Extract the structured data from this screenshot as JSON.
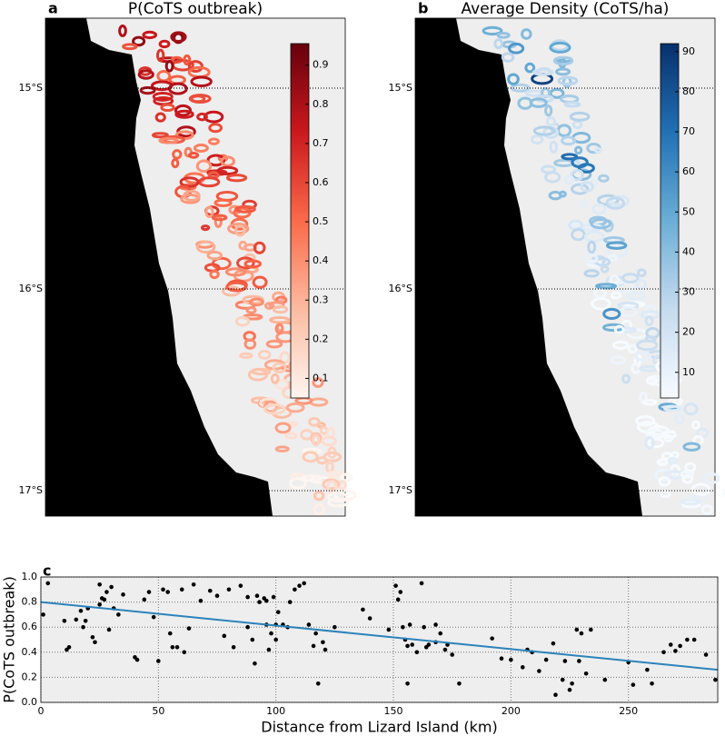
{
  "chart_data": [
    {
      "type": "map",
      "panel": "a",
      "title": "P(CoTS outbreak)",
      "lat_labels": [
        "15°S",
        "16°S",
        "17°S"
      ],
      "colormap": [
        "#fff5f0",
        "#fcbba1",
        "#fb6a4a",
        "#cb181d",
        "#67000d"
      ],
      "clim": [
        0.05,
        0.955
      ],
      "cticks": [
        0.1,
        0.2,
        0.3,
        0.4,
        0.5,
        0.6,
        0.7,
        0.8,
        0.9
      ]
    },
    {
      "type": "map",
      "panel": "b",
      "title": "Average Density (CoTS/ha)",
      "lat_labels": [
        "15°S",
        "16°S",
        "17°S"
      ],
      "colormap": [
        "#f7fbff",
        "#c6dbef",
        "#6baed6",
        "#2171b5",
        "#08306b"
      ],
      "clim": [
        3.6,
        92
      ],
      "cticks": [
        10,
        20,
        30,
        40,
        50,
        60,
        70,
        80,
        90
      ]
    },
    {
      "type": "scatter",
      "panel": "c",
      "xlabel": "Distance from Lizard Island (km)",
      "ylabel": "P(CoTS outbreak)",
      "xlim": [
        0,
        288
      ],
      "ylim": [
        0,
        1
      ],
      "xticks": [
        0,
        50,
        100,
        150,
        200,
        250
      ],
      "yticks": [
        {
          "value": 0,
          "label": "0.0"
        },
        0.2,
        0.4,
        0.6,
        0.8,
        {
          "value": 1,
          "label": "1.0"
        }
      ],
      "grid": true,
      "color": "#000000",
      "x": [
        1,
        3,
        10,
        11,
        12,
        15,
        17,
        18,
        19,
        20,
        22,
        23,
        25,
        25,
        26,
        27,
        28,
        29,
        30,
        31,
        33,
        35,
        40,
        41,
        44,
        46,
        48,
        50,
        52,
        54,
        55,
        56,
        58,
        60,
        61,
        63,
        65,
        68,
        72,
        75,
        78,
        80,
        82,
        85,
        88,
        88,
        90,
        91,
        92,
        93,
        95,
        96,
        96,
        97,
        98,
        99,
        100,
        100,
        101,
        103,
        105,
        106,
        108,
        110,
        112,
        114,
        116,
        117,
        118,
        120,
        121,
        125,
        137,
        140,
        148,
        151,
        152,
        153,
        154,
        155,
        156,
        156,
        157,
        158,
        160,
        162,
        163,
        164,
        165,
        168,
        168,
        170,
        172,
        173,
        175,
        178,
        192,
        196,
        200,
        205,
        207,
        209,
        212,
        215,
        218,
        219,
        222,
        223,
        225,
        226,
        228,
        229,
        230,
        232,
        234,
        240,
        250,
        252,
        258,
        260,
        265,
        268,
        270,
        272,
        275,
        278,
        283,
        287
      ],
      "values": [
        0.7,
        0.95,
        0.65,
        0.42,
        0.44,
        0.66,
        0.73,
        0.6,
        0.65,
        0.75,
        0.52,
        0.48,
        0.94,
        0.78,
        0.83,
        0.82,
        0.88,
        0.58,
        0.92,
        0.75,
        0.7,
        0.86,
        0.36,
        0.34,
        0.82,
        0.88,
        0.68,
        0.33,
        0.9,
        0.88,
        0.55,
        0.44,
        0.44,
        0.9,
        0.4,
        0.59,
        0.94,
        0.81,
        0.89,
        0.85,
        0.53,
        0.9,
        0.44,
        0.93,
        0.84,
        0.6,
        0.5,
        0.31,
        0.85,
        0.8,
        0.83,
        0.81,
        0.62,
        0.42,
        0.55,
        0.84,
        0.62,
        0.5,
        0.72,
        0.62,
        0.6,
        0.8,
        0.9,
        0.93,
        0.95,
        0.62,
        0.45,
        0.55,
        0.15,
        0.48,
        0.42,
        0.6,
        0.74,
        0.67,
        0.58,
        0.93,
        0.82,
        0.88,
        0.6,
        0.5,
        0.15,
        0.45,
        0.62,
        0.46,
        0.4,
        0.95,
        0.6,
        0.44,
        0.46,
        0.62,
        0.48,
        0.55,
        0.42,
        0.46,
        0.38,
        0.15,
        0.51,
        0.35,
        0.34,
        0.28,
        0.42,
        0.4,
        0.25,
        0.34,
        0.47,
        0.06,
        0.18,
        0.33,
        0.1,
        0.15,
        0.58,
        0.33,
        0.55,
        0.23,
        0.58,
        0.18,
        0.32,
        0.14,
        0.26,
        0.15,
        0.4,
        0.46,
        0.41,
        0.45,
        0.5,
        0.5,
        0.38,
        0.18
      ],
      "trend": {
        "color": "#2b83ba",
        "x": [
          0,
          288
        ],
        "values": [
          0.8,
          0.26
        ]
      }
    }
  ]
}
